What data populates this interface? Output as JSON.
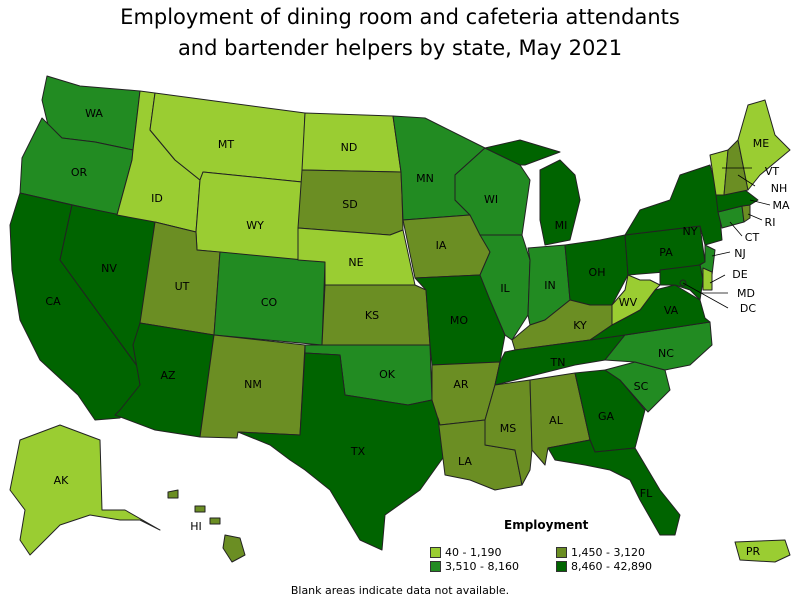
{
  "title_line1": "Employment of dining room and cafeteria attendants",
  "title_line2": "and bartender helpers by state, May 2021",
  "legend": {
    "title": "Employment",
    "items": [
      {
        "label": "40 - 1,190",
        "color": "#9acd32"
      },
      {
        "label": "1,450 - 3,120",
        "color": "#6b8e23"
      },
      {
        "label": "3,510 - 8,160",
        "color": "#228b22"
      },
      {
        "label": "8,460 - 42,890",
        "color": "#006400"
      }
    ]
  },
  "note": "Blank areas indicate data not available.",
  "states": {
    "WA": {
      "label": "WA",
      "class": "3"
    },
    "OR": {
      "label": "OR",
      "class": "3"
    },
    "CA": {
      "label": "CA",
      "class": "4"
    },
    "NV": {
      "label": "NV",
      "class": "4"
    },
    "ID": {
      "label": "ID",
      "class": "1"
    },
    "MT": {
      "label": "MT",
      "class": "1"
    },
    "WY": {
      "label": "WY",
      "class": "1"
    },
    "UT": {
      "label": "UT",
      "class": "2"
    },
    "AZ": {
      "label": "AZ",
      "class": "4"
    },
    "CO": {
      "label": "CO",
      "class": "3"
    },
    "NM": {
      "label": "NM",
      "class": "2"
    },
    "ND": {
      "label": "ND",
      "class": "1"
    },
    "SD": {
      "label": "SD",
      "class": "2"
    },
    "NE": {
      "label": "NE",
      "class": "1"
    },
    "KS": {
      "label": "KS",
      "class": "2"
    },
    "OK": {
      "label": "OK",
      "class": "3"
    },
    "TX": {
      "label": "TX",
      "class": "4"
    },
    "MN": {
      "label": "MN",
      "class": "3"
    },
    "IA": {
      "label": "IA",
      "class": "2"
    },
    "MO": {
      "label": "MO",
      "class": "4"
    },
    "AR": {
      "label": "AR",
      "class": "2"
    },
    "LA": {
      "label": "LA",
      "class": "2"
    },
    "WI": {
      "label": "WI",
      "class": "3"
    },
    "IL": {
      "label": "IL",
      "class": "3"
    },
    "MI": {
      "label": "MI",
      "class": "4"
    },
    "IN": {
      "label": "IN",
      "class": "3"
    },
    "OH": {
      "label": "OH",
      "class": "4"
    },
    "KY": {
      "label": "KY",
      "class": "2"
    },
    "TN": {
      "label": "TN",
      "class": "4"
    },
    "MS": {
      "label": "MS",
      "class": "2"
    },
    "AL": {
      "label": "AL",
      "class": "2"
    },
    "GA": {
      "label": "GA",
      "class": "4"
    },
    "FL": {
      "label": "FL",
      "class": "4"
    },
    "SC": {
      "label": "SC",
      "class": "3"
    },
    "NC": {
      "label": "NC",
      "class": "3"
    },
    "VA": {
      "label": "VA",
      "class": "4"
    },
    "WV": {
      "label": "WV",
      "class": "1"
    },
    "PA": {
      "label": "PA",
      "class": "4"
    },
    "NY": {
      "label": "NY",
      "class": "4"
    },
    "VT": {
      "label": "VT",
      "class": "1"
    },
    "NH": {
      "label": "NH",
      "class": "2"
    },
    "ME": {
      "label": "ME",
      "class": "1"
    },
    "MA": {
      "label": "MA",
      "class": "4"
    },
    "RI": {
      "label": "RI",
      "class": "2"
    },
    "CT": {
      "label": "CT",
      "class": "3"
    },
    "NJ": {
      "label": "NJ",
      "class": "3"
    },
    "DE": {
      "label": "DE",
      "class": "1"
    },
    "MD": {
      "label": "MD",
      "class": "4"
    },
    "DC": {
      "label": "DC",
      "class": "4"
    },
    "AK": {
      "label": "AK",
      "class": "1"
    },
    "HI": {
      "label": "HI",
      "class": "2"
    },
    "PR": {
      "label": "PR",
      "class": "1"
    }
  },
  "class_colors": {
    "1": "#9acd32",
    "2": "#6b8e23",
    "3": "#228b22",
    "4": "#006400"
  }
}
